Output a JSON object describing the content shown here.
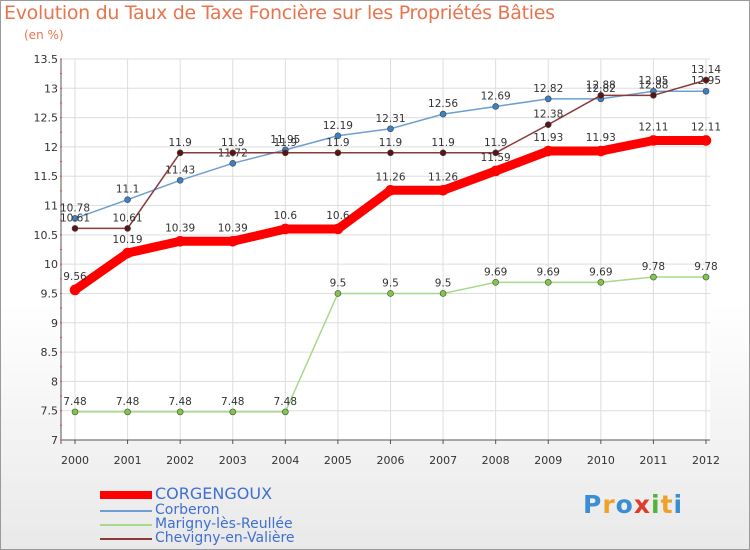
{
  "title": "Evolution du Taux de Taxe Foncière sur les Propriétés Bâties",
  "unit": "(en %)",
  "logo": {
    "letters": [
      "P",
      "r",
      "o",
      "x",
      "i",
      "t",
      "i"
    ],
    "colors": [
      "#3a8fd4",
      "#f0a12a",
      "#3a8fd4",
      "#e03a2a",
      "#55b23a",
      "#f0a12a",
      "#3a8fd4"
    ]
  },
  "chart_data": {
    "type": "line",
    "categories": [
      "2000",
      "2001",
      "2002",
      "2003",
      "2004",
      "2005",
      "2006",
      "2007",
      "2008",
      "2009",
      "2010",
      "2011",
      "2012"
    ],
    "ylim": [
      7,
      13.5
    ],
    "yticks": [
      "7",
      "7.5",
      "8",
      "8.5",
      "9",
      "9.5",
      "10",
      "10.5",
      "11",
      "11.5",
      "12",
      "12.5",
      "13",
      "13.5"
    ],
    "grid": true,
    "series": [
      {
        "name": "CORGENGOUX",
        "color": "#ff0000",
        "point_color": "#ff0000",
        "emphasis": true,
        "values": [
          9.56,
          10.19,
          10.39,
          10.39,
          10.6,
          10.6,
          11.26,
          11.26,
          11.59,
          11.93,
          11.93,
          12.11,
          12.11
        ],
        "labels": [
          "9.56",
          "10.19",
          "10.39",
          "10.39",
          "10.6",
          "10.6",
          "11.26",
          "11.26",
          "11.59",
          "11.93",
          "11.93",
          "12.11",
          "12.11"
        ]
      },
      {
        "name": "Corberon",
        "color": "#6d9fd2",
        "point_color": "#3d7fc0",
        "values": [
          10.78,
          11.1,
          11.43,
          11.72,
          11.95,
          12.19,
          12.31,
          12.56,
          12.69,
          12.82,
          12.82,
          12.95,
          12.95
        ],
        "labels": [
          "10.78",
          "11.1",
          "11.43",
          "11.72",
          "11.95",
          "12.19",
          "12.31",
          "12.56",
          "12.69",
          "12.82",
          "12.82",
          "12.95",
          "12.95"
        ]
      },
      {
        "name": "Marigny-lès-Reullée",
        "color": "#a8d88a",
        "point_color": "#7cc848",
        "values": [
          7.48,
          7.48,
          7.48,
          7.48,
          7.48,
          9.5,
          9.5,
          9.5,
          9.69,
          9.69,
          9.69,
          9.78,
          9.78
        ],
        "labels": [
          "7.48",
          "7.48",
          "7.48",
          "7.48",
          "7.48",
          "9.5",
          "9.5",
          "9.5",
          "9.69",
          "9.69",
          "9.69",
          "9.78",
          "9.78"
        ]
      },
      {
        "name": "Chevigny-en-Valière",
        "color": "#8b3a3a",
        "point_color": "#5a1414",
        "values": [
          10.61,
          10.61,
          11.9,
          11.9,
          11.9,
          11.9,
          11.9,
          11.9,
          11.9,
          12.38,
          12.88,
          12.88,
          13.14
        ],
        "labels": [
          "10.61",
          "10.61",
          "11.9",
          "11.9",
          "11.9",
          "11.9",
          "11.9",
          "11.9",
          "11.9",
          "12.38",
          "12.88",
          "12.88",
          "13.14"
        ]
      }
    ]
  }
}
